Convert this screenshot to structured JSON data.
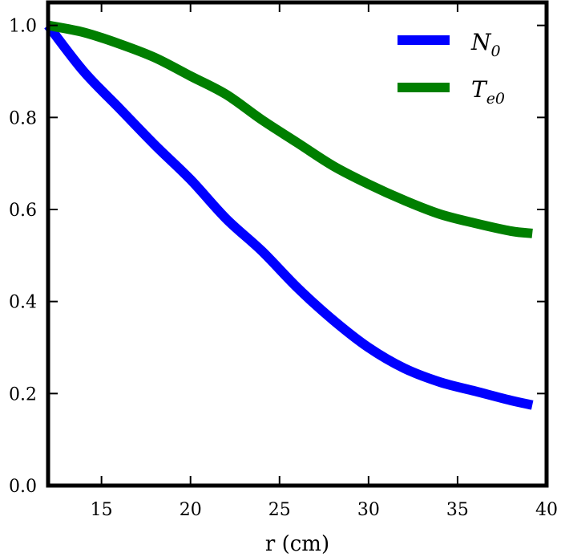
{
  "chart_data": {
    "type": "line",
    "title": "",
    "xlabel": "r (cm)",
    "ylabel": "",
    "xlim": [
      12,
      40
    ],
    "ylim": [
      0,
      1.05
    ],
    "xticks": [
      "15",
      "20",
      "25",
      "30",
      "35",
      "40"
    ],
    "yticks": [
      "0.0",
      "0.2",
      "0.4",
      "0.6",
      "0.8",
      "1.0"
    ],
    "grid": false,
    "legend_position": "top-right",
    "x": [
      12,
      14,
      16,
      18,
      20,
      22,
      24,
      26,
      28,
      30,
      32,
      34,
      36,
      38,
      39.2
    ],
    "series": [
      {
        "name": "N_0",
        "name_main": "N",
        "name_sub": "0",
        "color": "#0000ff",
        "values": [
          1.0,
          0.9,
          0.82,
          0.74,
          0.665,
          0.58,
          0.51,
          0.43,
          0.36,
          0.3,
          0.255,
          0.225,
          0.205,
          0.185,
          0.175
        ]
      },
      {
        "name": "T_e0",
        "name_main": "T",
        "name_sub": "e0",
        "color": "#007f00",
        "values": [
          1.0,
          0.985,
          0.96,
          0.93,
          0.89,
          0.85,
          0.795,
          0.745,
          0.695,
          0.655,
          0.62,
          0.59,
          0.57,
          0.553,
          0.548
        ]
      }
    ]
  }
}
